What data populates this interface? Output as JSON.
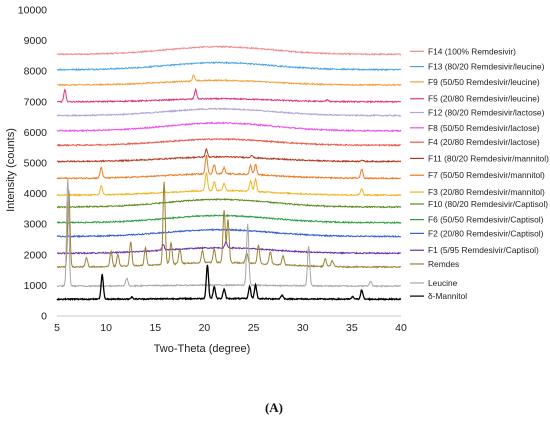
{
  "chart_data": {
    "type": "line",
    "title": "",
    "xlabel": "Two-Theta (degree)",
    "ylabel": "Intensity (counts)",
    "xlim": [
      5,
      40
    ],
    "ylim": [
      0,
      10000
    ],
    "x_ticks": [
      5,
      10,
      15,
      20,
      25,
      30,
      35,
      40
    ],
    "y_ticks": [
      0,
      1000,
      2000,
      3000,
      4000,
      5000,
      6000,
      7000,
      8000,
      9000,
      10000
    ],
    "grid": false,
    "legend_position": "right",
    "series": [
      {
        "name": "F14 (100% Remdesivir)",
        "color": "#f08a8a",
        "baseline": 8550,
        "hump": 250,
        "peaks": []
      },
      {
        "name": "F13 (80/20 Remdesivir/leucine)",
        "color": "#4ba3e3",
        "baseline": 8050,
        "hump": 230,
        "peaks": []
      },
      {
        "name": "F9 (50/50 Remdesivir/leucine)",
        "color": "#f2a03a",
        "baseline": 7550,
        "hump": 150,
        "peaks": [
          [
            18.9,
            180
          ]
        ]
      },
      {
        "name": "F5 (20/80 Remdesivir/leucine)",
        "color": "#e0357f",
        "baseline": 7000,
        "hump": 100,
        "peaks": [
          [
            5.8,
            380
          ],
          [
            19.1,
            300
          ],
          [
            32.5,
            50
          ]
        ]
      },
      {
        "name": "F12 (80/20 Remdesivir/lactose)",
        "color": "#b3a4d6",
        "baseline": 6550,
        "hump": 220,
        "peaks": []
      },
      {
        "name": "F8 (50/50 Remdesivir/lactose)",
        "color": "#ee4df0",
        "baseline": 6050,
        "hump": 260,
        "peaks": []
      },
      {
        "name": "F4 (20/80 Remdesivir/lactose)",
        "color": "#e85a4a",
        "baseline": 5580,
        "hump": 200,
        "peaks": []
      },
      {
        "name": "F11 (80/20 Remdesivir/mannitol)",
        "color": "#b53a1f",
        "baseline": 5050,
        "hump": 150,
        "peaks": [
          [
            20.2,
            250
          ],
          [
            24.8,
            80
          ],
          [
            36.0,
            40
          ]
        ]
      },
      {
        "name": "F7 (50/50 Remdesivir/mannitol)",
        "color": "#ee7a22",
        "baseline": 4500,
        "hump": 150,
        "peaks": [
          [
            9.5,
            350
          ],
          [
            20.2,
            600
          ],
          [
            21.0,
            300
          ],
          [
            22.0,
            200
          ],
          [
            24.7,
            300
          ],
          [
            25.2,
            350
          ],
          [
            36.0,
            300
          ]
        ]
      },
      {
        "name": "F3 (20/80 Remdesivir/mannitol)",
        "color": "#f2b21c",
        "baseline": 3950,
        "hump": 150,
        "peaks": [
          [
            9.5,
            300
          ],
          [
            20.2,
            600
          ],
          [
            21.0,
            300
          ],
          [
            22.0,
            250
          ],
          [
            24.7,
            350
          ],
          [
            25.2,
            400
          ],
          [
            36.0,
            200
          ]
        ]
      },
      {
        "name": "F10 (80/20 Remdesivir/Captisol)",
        "color": "#5c8a1e",
        "baseline": 3560,
        "hump": 250,
        "peaks": []
      },
      {
        "name": "F6 (50/50 Remdesivir/Captisol)",
        "color": "#2d9d3e",
        "baseline": 3050,
        "hump": 230,
        "peaks": []
      },
      {
        "name": "F2 (20/80 Remdesivir/Captisol)",
        "color": "#2f5fcf",
        "baseline": 2600,
        "hump": 220,
        "peaks": []
      },
      {
        "name": "F1 (5/95 Remdesivir/Captisol)",
        "color": "#6d2da3",
        "baseline": 2050,
        "hump": 180,
        "peaks": [
          [
            15.8,
            200
          ],
          [
            22.2,
            200
          ]
        ]
      },
      {
        "name": "Remdes",
        "color": "#9a8133",
        "baseline": 1600,
        "hump": 150,
        "peaks": [
          [
            6.2,
            2500
          ],
          [
            8.0,
            300
          ],
          [
            10.5,
            500
          ],
          [
            11.2,
            400
          ],
          [
            12.5,
            800
          ],
          [
            14.0,
            600
          ],
          [
            15.9,
            2700
          ],
          [
            16.6,
            700
          ],
          [
            17.5,
            500
          ],
          [
            19.8,
            400
          ],
          [
            21.0,
            450
          ],
          [
            22.0,
            1700
          ],
          [
            22.4,
            1400
          ],
          [
            24.3,
            350
          ],
          [
            25.5,
            600
          ],
          [
            26.7,
            400
          ],
          [
            28.0,
            300
          ],
          [
            32.3,
            250
          ],
          [
            33.0,
            200
          ]
        ]
      },
      {
        "name": "Leucine",
        "color": "#a6a6a6",
        "baseline": 980,
        "hump": 30,
        "peaks": [
          [
            6.1,
            3500
          ],
          [
            12.1,
            250
          ],
          [
            24.4,
            2000
          ],
          [
            30.6,
            1300
          ],
          [
            36.9,
            150
          ]
        ]
      },
      {
        "name": "δ-Mannitol",
        "color": "#000000",
        "baseline": 550,
        "hump": 20,
        "peaks": [
          [
            9.6,
            800
          ],
          [
            12.6,
            60
          ],
          [
            20.3,
            1100
          ],
          [
            21.0,
            400
          ],
          [
            22.0,
            300
          ],
          [
            24.6,
            400
          ],
          [
            25.2,
            450
          ],
          [
            27.9,
            120
          ],
          [
            35.1,
            80
          ],
          [
            36.0,
            300
          ]
        ]
      }
    ]
  },
  "figure": {
    "caption": "(A)"
  }
}
